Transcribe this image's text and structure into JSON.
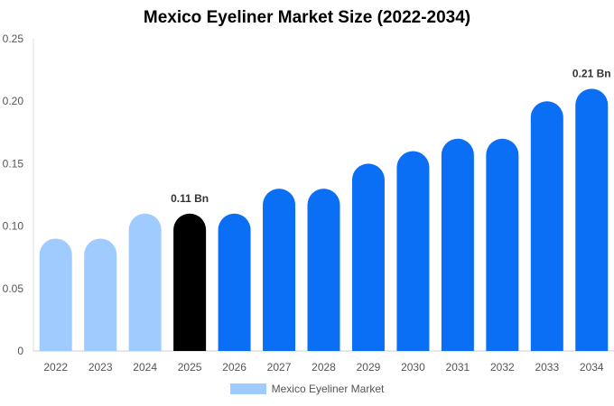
{
  "chart_data": {
    "type": "bar",
    "title": "Mexico Eyeliner Market Size (2022-2034)",
    "xlabel": "",
    "ylabel": "",
    "categories": [
      "2022",
      "2023",
      "2024",
      "2025",
      "2026",
      "2027",
      "2028",
      "2029",
      "2030",
      "2031",
      "2032",
      "2033",
      "2034"
    ],
    "series": [
      {
        "name": "Mexico Eyeliner Market",
        "values": [
          0.09,
          0.09,
          0.11,
          0.11,
          0.11,
          0.13,
          0.13,
          0.15,
          0.16,
          0.17,
          0.17,
          0.2,
          0.21
        ]
      }
    ],
    "ylim": [
      0,
      0.25
    ],
    "yticks": [
      0,
      0.05,
      0.1,
      0.15,
      0.2,
      0.25
    ],
    "ytick_labels": [
      "0",
      "0.05",
      "0.10",
      "0.15",
      "0.20",
      "0.25"
    ],
    "data_labels": [
      {
        "category": "2025",
        "text": "0.11 Bn"
      },
      {
        "category": "2034",
        "text": "0.21 Bn"
      }
    ],
    "bar_colors": {
      "historical": "#a0cbff",
      "base_year": "#000000",
      "forecast": "#0a6ff5"
    },
    "historical_categories": [
      "2022",
      "2023",
      "2024"
    ],
    "base_year_category": "2025",
    "legend": {
      "position": "bottom-center",
      "swatch_color": "#a0cbff"
    },
    "grid": false
  }
}
